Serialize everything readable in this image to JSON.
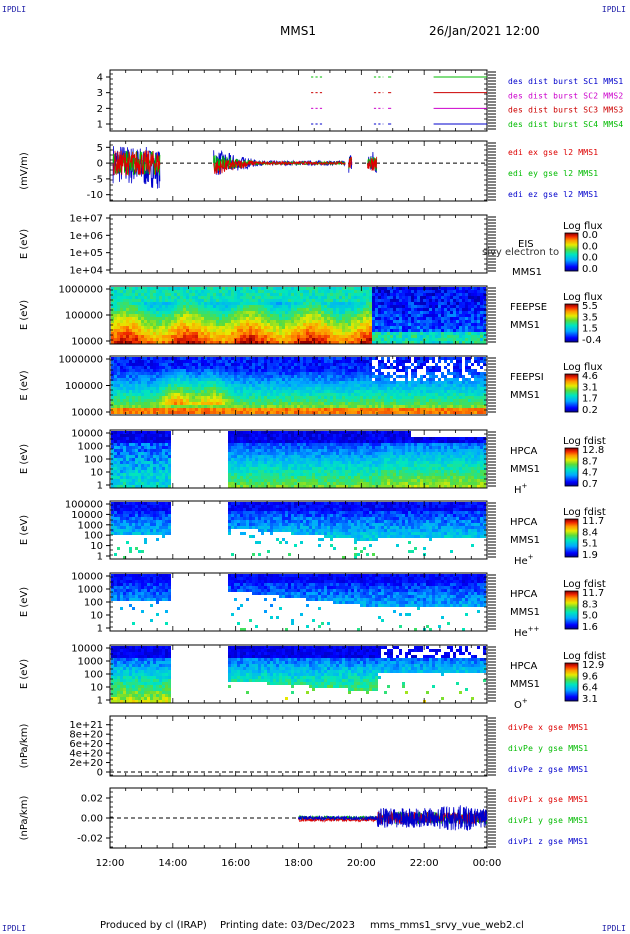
{
  "corners": {
    "tl": "IPDLI",
    "tr": "IPDLI",
    "bl": "IPDLI",
    "br": "IPDLI"
  },
  "header": {
    "mission": "MMS1",
    "datetime": "26/Jan/2021 12:00"
  },
  "footer": {
    "produced_by": "Produced by cl (IRAP)",
    "printing_date": "Printing date: 03/Dec/2023",
    "script": "mms_mms1_srvy_vue_web2.cl"
  },
  "colors": {
    "mms1": "#0000cc",
    "mms2": "#cc00cc",
    "mms3": "#cc0000",
    "mms4": "#00bb00",
    "x": "#dd0000",
    "y": "#00bb00",
    "z": "#0000cc"
  },
  "chart_data": [
    {
      "type": "line",
      "panel": "burst",
      "yticks": [
        "4",
        "3",
        "2",
        "1"
      ],
      "series": [
        {
          "name": "des dist burst SC1 MMS1",
          "y": 1
        },
        {
          "name": "des dist burst SC2 MMS2",
          "y": 2
        },
        {
          "name": "des dist burst SC3 MMS3",
          "y": 3
        },
        {
          "name": "des dist burst SC4 MMS4",
          "y": 4
        }
      ],
      "intervals": [
        [
          18.4,
          18.8
        ],
        [
          20.4,
          20.7
        ],
        [
          20.85,
          20.95
        ],
        [
          22.3,
          24.0
        ]
      ]
    },
    {
      "type": "line",
      "panel": "edi",
      "ylabel": "(mV/m)",
      "yticks": [
        "5",
        "0",
        "-5",
        "-10"
      ],
      "ylim": [
        -12,
        7
      ],
      "series": [
        {
          "name": "edi ex gse l2 MMS1"
        },
        {
          "name": "edi ey gse l2 MMS1"
        },
        {
          "name": "edi ez gse l2 MMS1"
        }
      ]
    },
    {
      "type": "heatmap",
      "panel": "eis",
      "ylabel": "E (eV)",
      "yticks": [
        "1e+07",
        "1e+06",
        "1e+05",
        "1e+04"
      ],
      "side": [
        "EIS",
        "MMS1"
      ],
      "overlay": "sivy electron to",
      "colorbar": {
        "title": "Log flux",
        "ticks": [
          "0.0",
          "0.0",
          "0.0",
          "0.0"
        ]
      }
    },
    {
      "type": "heatmap",
      "panel": "feepse",
      "ylabel": "E (eV)",
      "yticks": [
        "1000000",
        "100000",
        "10000"
      ],
      "side": [
        "FEEPSE",
        "MMS1"
      ],
      "colorbar": {
        "title": "Log flux",
        "ticks": [
          "5.5",
          "3.5",
          "1.5",
          "-0.4"
        ]
      }
    },
    {
      "type": "heatmap",
      "panel": "feepsi",
      "ylabel": "E (eV)",
      "yticks": [
        "1000000",
        "100000",
        "10000"
      ],
      "side": [
        "FEEPSI",
        "MMS1"
      ],
      "colorbar": {
        "title": "Log flux",
        "ticks": [
          "4.6",
          "3.1",
          "1.7",
          "0.2"
        ]
      }
    },
    {
      "type": "heatmap",
      "panel": "hpca_h",
      "ylabel": "E (eV)",
      "yticks": [
        "10000",
        "1000",
        "100",
        "10",
        "1"
      ],
      "side": [
        "HPCA",
        "MMS1",
        "H+"
      ],
      "colorbar": {
        "title": "Log fdist",
        "ticks": [
          "12.8",
          "8.7",
          "4.7",
          "0.7"
        ]
      }
    },
    {
      "type": "heatmap",
      "panel": "hpca_he",
      "ylabel": "E (eV)",
      "yticks": [
        "100000",
        "10000",
        "1000",
        "100",
        "10",
        "1"
      ],
      "side": [
        "HPCA",
        "MMS1",
        "He+"
      ],
      "colorbar": {
        "title": "Log fdist",
        "ticks": [
          "11.7",
          "8.4",
          "5.1",
          "1.9"
        ]
      }
    },
    {
      "type": "heatmap",
      "panel": "hpca_hepp",
      "ylabel": "E (eV)",
      "yticks": [
        "10000",
        "1000",
        "100",
        "10",
        "1"
      ],
      "side": [
        "HPCA",
        "MMS1",
        "He++"
      ],
      "colorbar": {
        "title": "Log fdist",
        "ticks": [
          "11.7",
          "8.3",
          "5.0",
          "1.6"
        ]
      }
    },
    {
      "type": "heatmap",
      "panel": "hpca_o",
      "ylabel": "E (eV)",
      "yticks": [
        "10000",
        "1000",
        "100",
        "10",
        "1"
      ],
      "side": [
        "HPCA",
        "MMS1",
        "O+"
      ],
      "colorbar": {
        "title": "Log fdist",
        "ticks": [
          "12.9",
          "9.6",
          "6.4",
          "3.1"
        ]
      }
    },
    {
      "type": "line",
      "panel": "divpe",
      "ylabel": "(nPa/km)",
      "yticks": [
        "1e+21",
        "8e+20",
        "6e+20",
        "4e+20",
        "2e+20",
        "0"
      ],
      "ylim": [
        0,
        1.1e+21
      ],
      "series": [
        {
          "name": "divPe x gse MMS1"
        },
        {
          "name": "divPe y gse MMS1"
        },
        {
          "name": "divPe z gse MMS1"
        }
      ]
    },
    {
      "type": "line",
      "panel": "divpi",
      "ylabel": "(nPa/km)",
      "yticks": [
        "0.02",
        "0.00",
        "-0.02"
      ],
      "ylim": [
        -0.03,
        0.03
      ],
      "series": [
        {
          "name": "divPi x gse MMS1"
        },
        {
          "name": "divPi y gse MMS1"
        },
        {
          "name": "divPi z gse MMS1"
        }
      ]
    }
  ],
  "xaxis": {
    "ticks": [
      "12:00",
      "14:00",
      "16:00",
      "18:00",
      "20:00",
      "22:00",
      "00:00"
    ],
    "xlim": [
      12,
      24
    ]
  }
}
